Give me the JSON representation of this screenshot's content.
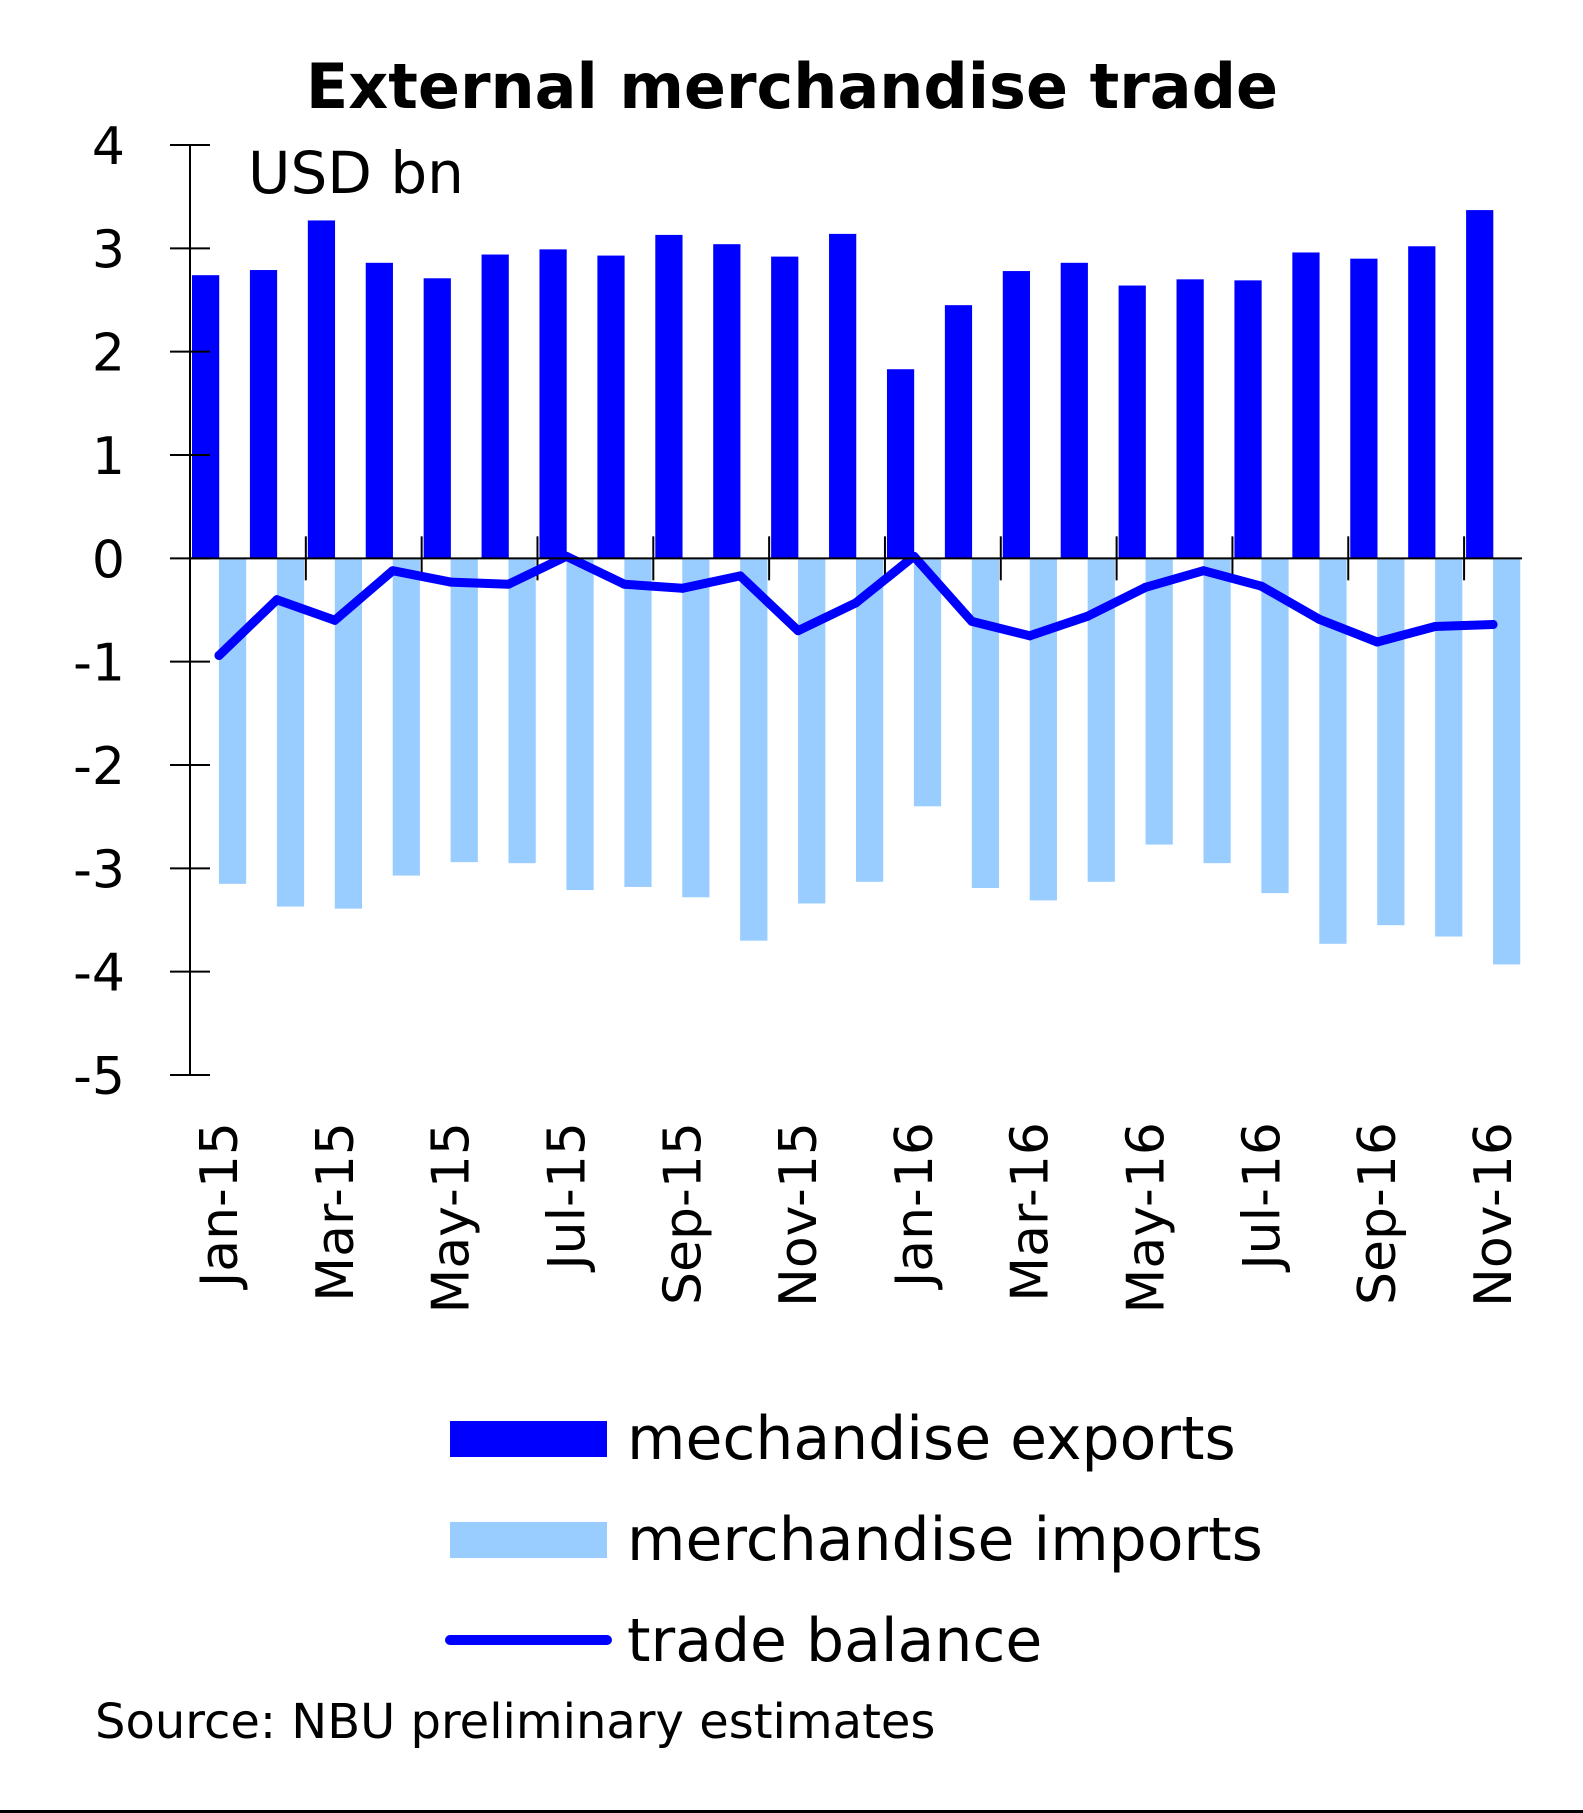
{
  "chart_data": {
    "type": "bar",
    "title": "External merchandise trade",
    "unit_label": "USD bn",
    "source": "Source: NBU preliminary estimates",
    "ylim": [
      -5,
      4
    ],
    "yticks": [
      "4",
      "3",
      "2",
      "1",
      "0",
      "-1",
      "-2",
      "-3",
      "-4",
      "-5"
    ],
    "categories": [
      "Jan-15",
      "Feb-15",
      "Mar-15",
      "Apr-15",
      "May-15",
      "Jun-15",
      "Jul-15",
      "Aug-15",
      "Sep-15",
      "Oct-15",
      "Nov-15",
      "Dec-15",
      "Jan-16",
      "Feb-16",
      "Mar-16",
      "Apr-16",
      "May-16",
      "Jun-16",
      "Jul-16",
      "Aug-16",
      "Sep-16",
      "Oct-16",
      "Nov-16"
    ],
    "xtick_labels": [
      "Jan-15",
      "Mar-15",
      "May-15",
      "Jul-15",
      "Sep-15",
      "Nov-15",
      "Jan-16",
      "Mar-16",
      "May-16",
      "Jul-16",
      "Sep-16",
      "Nov-16"
    ],
    "grid": false,
    "legend_position": "bottom",
    "series": [
      {
        "name": "mechandise exports",
        "kind": "bar",
        "color": "#0000ff",
        "values": [
          2.74,
          2.79,
          3.27,
          2.86,
          2.71,
          2.94,
          2.99,
          2.93,
          3.13,
          3.04,
          2.92,
          3.14,
          1.83,
          2.45,
          2.78,
          2.86,
          2.64,
          2.7,
          2.69,
          2.96,
          2.9,
          3.02,
          3.37
        ]
      },
      {
        "name": "merchandise imports",
        "kind": "bar",
        "color": "#99ccff",
        "values": [
          -3.15,
          -3.37,
          -3.39,
          -3.07,
          -2.94,
          -2.95,
          -3.21,
          -3.18,
          -3.28,
          -3.7,
          -3.34,
          -3.13,
          -2.4,
          -3.19,
          -3.31,
          -3.13,
          -2.77,
          -2.95,
          -3.24,
          -3.73,
          -3.55,
          -3.66,
          -3.93
        ]
      },
      {
        "name": "trade balance",
        "kind": "line",
        "color": "#0000ff",
        "values": [
          -0.94,
          -0.4,
          -0.6,
          -0.12,
          -0.23,
          -0.25,
          0.02,
          -0.25,
          -0.29,
          -0.17,
          -0.7,
          -0.43,
          0.02,
          -0.61,
          -0.75,
          -0.56,
          -0.28,
          -0.12,
          -0.27,
          -0.59,
          -0.81,
          -0.66,
          -0.64
        ]
      }
    ]
  }
}
